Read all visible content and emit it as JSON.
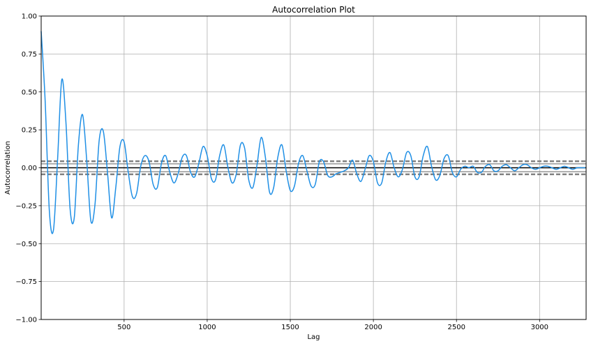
{
  "chart_data": {
    "type": "line",
    "title": "Autocorrelation Plot",
    "xlabel": "Lag",
    "ylabel": "Autocorrelation",
    "xlim": [
      1,
      3280
    ],
    "ylim": [
      -1.0,
      1.0
    ],
    "grid": true,
    "x_ticks": [
      500,
      1000,
      1500,
      2000,
      2500,
      3000
    ],
    "x_tick_labels": [
      "500",
      "1000",
      "1500",
      "2000",
      "2500",
      "3000"
    ],
    "y_ticks": [
      -1.0,
      -0.75,
      -0.5,
      -0.25,
      0.0,
      0.25,
      0.5,
      0.75,
      1.0
    ],
    "y_tick_labels": [
      "−1.00",
      "−0.75",
      "−0.50",
      "−0.25",
      "0.00",
      "0.25",
      "0.50",
      "0.75",
      "1.00"
    ],
    "zero_line": 0.0,
    "confidence_bands": {
      "solid": [
        0.026,
        -0.026
      ],
      "dashed": [
        0.043,
        -0.043
      ]
    },
    "series": [
      {
        "color": "#1f8fe5",
        "x": [
          1,
          25,
          50,
          75,
          100,
          125,
          150,
          175,
          200,
          225,
          250,
          275,
          300,
          325,
          350,
          375,
          400,
          425,
          450,
          475,
          500,
          525,
          550,
          575,
          600,
          625,
          650,
          675,
          700,
          725,
          750,
          775,
          800,
          825,
          850,
          875,
          900,
          925,
          950,
          975,
          1000,
          1025,
          1050,
          1075,
          1100,
          1125,
          1150,
          1175,
          1200,
          1225,
          1250,
          1275,
          1300,
          1325,
          1350,
          1375,
          1400,
          1425,
          1450,
          1475,
          1500,
          1525,
          1550,
          1575,
          1600,
          1625,
          1650,
          1675,
          1700,
          1725,
          1750,
          1775,
          1800,
          1825,
          1850,
          1875,
          1900,
          1925,
          1950,
          1975,
          2000,
          2025,
          2050,
          2075,
          2100,
          2125,
          2150,
          2175,
          2200,
          2225,
          2250,
          2275,
          2300,
          2325,
          2350,
          2375,
          2400,
          2425,
          2450,
          2475,
          2500,
          2525,
          2550,
          2575,
          2600,
          2625,
          2650,
          2675,
          2700,
          2725,
          2750,
          2775,
          2800,
          2825,
          2850,
          2875,
          2900,
          2925,
          2950,
          2975,
          3000,
          3025,
          3050,
          3075,
          3100,
          3125,
          3150,
          3175,
          3200,
          3225,
          3250,
          3275
        ],
        "y": [
          0.9,
          0.44,
          -0.28,
          -0.41,
          0.06,
          0.58,
          0.3,
          -0.27,
          -0.33,
          0.15,
          0.35,
          0.05,
          -0.35,
          -0.24,
          0.18,
          0.24,
          -0.03,
          -0.33,
          -0.13,
          0.14,
          0.17,
          -0.03,
          -0.19,
          -0.17,
          0.01,
          0.08,
          0.04,
          -0.11,
          -0.13,
          0.03,
          0.08,
          -0.03,
          -0.1,
          -0.04,
          0.07,
          0.08,
          -0.03,
          -0.06,
          0.03,
          0.14,
          0.08,
          -0.07,
          -0.08,
          0.08,
          0.15,
          0.0,
          -0.1,
          -0.04,
          0.15,
          0.13,
          -0.08,
          -0.13,
          0.02,
          0.2,
          0.07,
          -0.16,
          -0.13,
          0.07,
          0.15,
          -0.02,
          -0.15,
          -0.12,
          0.03,
          0.08,
          -0.02,
          -0.12,
          -0.11,
          0.04,
          0.04,
          -0.05,
          -0.06,
          -0.04,
          -0.03,
          -0.02,
          0.0,
          0.05,
          -0.04,
          -0.09,
          -0.01,
          0.08,
          0.04,
          -0.1,
          -0.1,
          0.04,
          0.1,
          0.0,
          -0.06,
          -0.01,
          0.1,
          0.08,
          -0.06,
          -0.06,
          0.08,
          0.14,
          0.01,
          -0.08,
          -0.05,
          0.06,
          0.08,
          -0.03,
          -0.06,
          -0.01,
          0.01,
          0.0,
          0.01,
          -0.03,
          -0.03,
          0.01,
          0.02,
          -0.02,
          -0.02,
          0.01,
          0.02,
          0.0,
          -0.02,
          0.0,
          0.02,
          0.02,
          0.0,
          -0.01,
          0.0,
          0.01,
          0.01,
          0.0,
          -0.01,
          0.0,
          0.01,
          0.0,
          -0.01,
          0.0,
          0.0,
          0.0
        ]
      }
    ]
  }
}
